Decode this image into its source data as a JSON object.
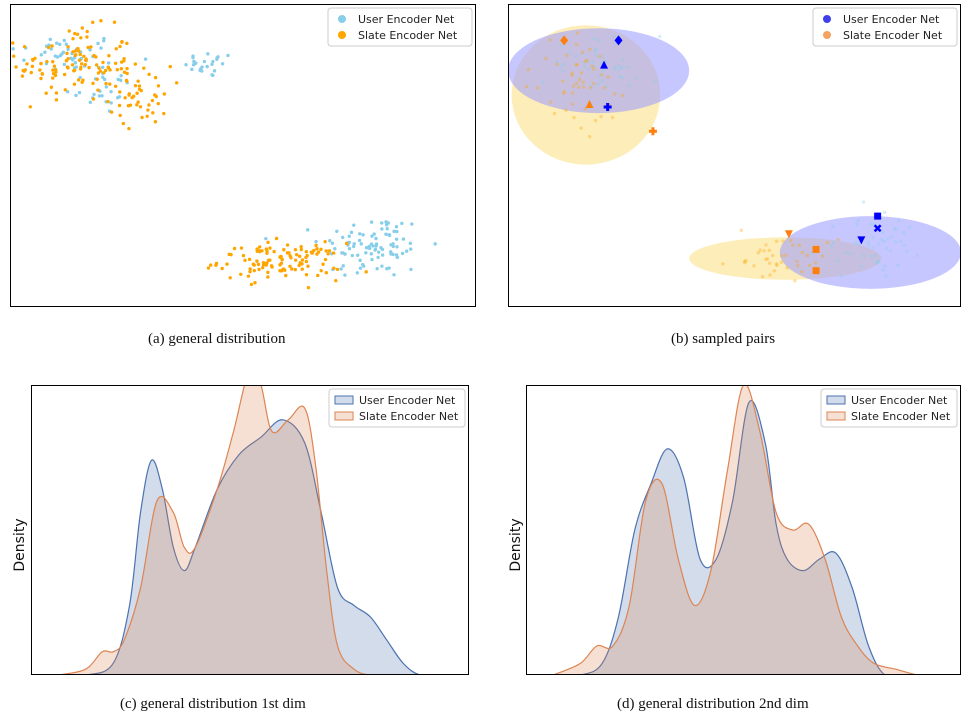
{
  "figure": {
    "captions": {
      "a": "(a)  general distribution",
      "b": "(b)  sampled pairs",
      "c": "(c)  general distribution 1st dim",
      "d": "(d)  general distribution 2nd dim"
    }
  },
  "colors": {
    "user_scatter": "#87ceeb",
    "slate_scatter": "#ffa500",
    "user_sample": "#0000ff",
    "slate_sample": "#ff7f0e",
    "user_kde": "#4c72b0",
    "slate_kde": "#dd8452"
  },
  "chart_data": [
    {
      "id": "a",
      "type": "scatter",
      "title": "",
      "xlabel": "",
      "ylabel": "",
      "axes_ticks": false,
      "legend": {
        "placement": "top-right",
        "entries": [
          "User Encoder Net",
          "Slate Encoder Net"
        ]
      },
      "series": [
        {
          "name": "User Encoder Net",
          "color": "#87ceeb",
          "clusters": [
            {
              "cx": 3.0,
              "cy": 8.4,
              "sx": 2.8,
              "sy": 0.5,
              "n": 40
            },
            {
              "cx": 10.7,
              "cy": 8.0,
              "sx": 1.2,
              "sy": 0.35,
              "n": 25
            },
            {
              "cx": 4.7,
              "cy": 7.3,
              "sx": 1.6,
              "sy": 0.8,
              "n": 30
            },
            {
              "cx": 19.5,
              "cy": 2.0,
              "sx": 2.6,
              "sy": 0.9,
              "n": 95
            }
          ]
        },
        {
          "name": "Slate Encoder Net",
          "color": "#ffa500",
          "clusters": [
            {
              "cx": 3.5,
              "cy": 8.0,
              "sx": 2.8,
              "sy": 1.0,
              "n": 115
            },
            {
              "cx": 7.0,
              "cy": 7.0,
              "sx": 1.5,
              "sy": 0.8,
              "n": 45
            },
            {
              "cx": 14.5,
              "cy": 1.5,
              "sx": 3.0,
              "sy": 0.5,
              "n": 115
            }
          ]
        }
      ],
      "xlim": [
        0,
        25
      ],
      "ylim": [
        0,
        10
      ]
    },
    {
      "id": "b",
      "type": "scatter",
      "title": "",
      "xlabel": "",
      "ylabel": "",
      "axes_ticks": false,
      "legend": {
        "placement": "top-right",
        "entries": [
          "User Encoder Net",
          "Slate Encoder Net"
        ]
      },
      "series": [
        {
          "name": "User Encoder Net",
          "color": "#0000ff",
          "ellipses": [
            {
              "cx": 5.0,
              "cy": 7.8,
              "rx": 5.0,
              "ry": 1.4
            },
            {
              "cx": 20.0,
              "cy": 1.8,
              "rx": 5.0,
              "ry": 1.2
            }
          ],
          "clusters": [
            {
              "cx": 5.0,
              "cy": 8.0,
              "sx": 2.8,
              "sy": 0.8,
              "n": 45
            },
            {
              "cx": 20.0,
              "cy": 2.0,
              "sx": 2.6,
              "sy": 0.8,
              "n": 50
            }
          ],
          "highlighted": [
            {
              "marker": "diamond",
              "x": 6.1,
              "y": 8.8
            },
            {
              "marker": "triangle-up",
              "x": 5.3,
              "y": 8.0
            },
            {
              "marker": "plus",
              "x": 5.5,
              "y": 6.6
            },
            {
              "marker": "square",
              "x": 20.4,
              "y": 3.0
            },
            {
              "marker": "x",
              "x": 20.4,
              "y": 2.6
            },
            {
              "marker": "triangle-down",
              "x": 19.5,
              "y": 2.2
            }
          ]
        },
        {
          "name": "Slate Encoder Net",
          "color": "#ff7f0e",
          "ellipses": [
            {
              "cx": 4.3,
              "cy": 7.0,
              "rx": 4.1,
              "ry": 2.3
            },
            {
              "cx": 15.3,
              "cy": 1.6,
              "rx": 5.3,
              "ry": 0.7
            }
          ],
          "clusters": [
            {
              "cx": 4.0,
              "cy": 7.5,
              "sx": 2.3,
              "sy": 1.3,
              "n": 50
            },
            {
              "cx": 15.0,
              "cy": 1.6,
              "sx": 3.0,
              "sy": 0.5,
              "n": 40
            }
          ],
          "highlighted": [
            {
              "marker": "diamond",
              "x": 3.1,
              "y": 8.8
            },
            {
              "marker": "triangle-up",
              "x": 4.5,
              "y": 6.7
            },
            {
              "marker": "plus",
              "x": 8.0,
              "y": 5.8
            },
            {
              "marker": "triangle-down",
              "x": 15.5,
              "y": 2.4
            },
            {
              "marker": "square",
              "x": 17.0,
              "y": 1.9
            },
            {
              "marker": "square",
              "x": 17.0,
              "y": 1.2
            }
          ]
        }
      ],
      "xlim": [
        0,
        25
      ],
      "ylim": [
        0,
        10
      ]
    },
    {
      "id": "c",
      "type": "area",
      "title": "",
      "xlabel": "",
      "ylabel": "Density",
      "legend": {
        "placement": "top-right",
        "entries": [
          "User Encoder Net",
          "Slate Encoder Net"
        ]
      },
      "xlim": [
        -4,
        4
      ],
      "ylim": [
        0,
        0.5
      ],
      "series": [
        {
          "name": "User Encoder Net",
          "color": "#4c72b0",
          "x": [
            -3.5,
            -3.0,
            -2.5,
            -2.2,
            -2.0,
            -1.8,
            -1.6,
            -1.4,
            -1.2,
            -1.0,
            -0.6,
            -0.2,
            0.2,
            0.6,
            1.0,
            1.3,
            1.6,
            1.9,
            2.2,
            2.5,
            2.8,
            3.1,
            3.5
          ],
          "values": [
            0.0,
            0.0,
            0.02,
            0.12,
            0.28,
            0.37,
            0.32,
            0.22,
            0.18,
            0.22,
            0.32,
            0.38,
            0.41,
            0.44,
            0.4,
            0.28,
            0.15,
            0.12,
            0.1,
            0.06,
            0.02,
            0.0,
            0.0
          ]
        },
        {
          "name": "Slate Encoder Net",
          "color": "#dd8452",
          "x": [
            -3.5,
            -3.0,
            -2.7,
            -2.5,
            -2.3,
            -2.0,
            -1.7,
            -1.4,
            -1.2,
            -1.0,
            -0.6,
            -0.3,
            0.0,
            0.2,
            0.4,
            0.7,
            1.0,
            1.2,
            1.4,
            1.6,
            1.9,
            2.2,
            2.5,
            3.0
          ],
          "values": [
            0.0,
            0.01,
            0.04,
            0.04,
            0.06,
            0.15,
            0.3,
            0.28,
            0.22,
            0.22,
            0.32,
            0.42,
            0.53,
            0.5,
            0.42,
            0.44,
            0.46,
            0.36,
            0.18,
            0.05,
            0.01,
            0.0,
            0.0,
            0.0
          ]
        }
      ]
    },
    {
      "id": "d",
      "type": "area",
      "title": "",
      "xlabel": "",
      "ylabel": "Density",
      "legend": {
        "placement": "top-right",
        "entries": [
          "User Encoder Net",
          "Slate Encoder Net"
        ]
      },
      "xlim": [
        -4,
        4
      ],
      "ylim": [
        0,
        0.5
      ],
      "series": [
        {
          "name": "User Encoder Net",
          "color": "#4c72b0",
          "x": [
            -3.5,
            -3.0,
            -2.6,
            -2.3,
            -2.0,
            -1.7,
            -1.4,
            -1.1,
            -0.8,
            -0.5,
            -0.2,
            0.1,
            0.4,
            0.6,
            0.8,
            1.1,
            1.4,
            1.7,
            2.0,
            2.3,
            2.6,
            3.0,
            3.5
          ],
          "values": [
            0.0,
            0.0,
            0.02,
            0.1,
            0.25,
            0.33,
            0.39,
            0.34,
            0.2,
            0.2,
            0.3,
            0.47,
            0.4,
            0.26,
            0.2,
            0.18,
            0.2,
            0.21,
            0.15,
            0.05,
            0.0,
            0.0,
            0.0
          ]
        },
        {
          "name": "Slate Encoder Net",
          "color": "#dd8452",
          "x": [
            -3.5,
            -3.0,
            -2.7,
            -2.4,
            -2.1,
            -1.8,
            -1.5,
            -1.2,
            -0.9,
            -0.6,
            -0.3,
            0.0,
            0.3,
            0.6,
            0.9,
            1.2,
            1.5,
            1.8,
            2.1,
            2.4,
            2.8,
            3.2,
            3.5
          ],
          "values": [
            0.0,
            0.02,
            0.05,
            0.05,
            0.12,
            0.3,
            0.33,
            0.2,
            0.12,
            0.18,
            0.35,
            0.5,
            0.42,
            0.28,
            0.25,
            0.26,
            0.2,
            0.1,
            0.05,
            0.02,
            0.01,
            0.0,
            0.0
          ]
        }
      ]
    }
  ],
  "legend_labels": {
    "user": "User Encoder Net",
    "slate": "Slate Encoder Net"
  },
  "axis_labels": {
    "density": "Density"
  }
}
